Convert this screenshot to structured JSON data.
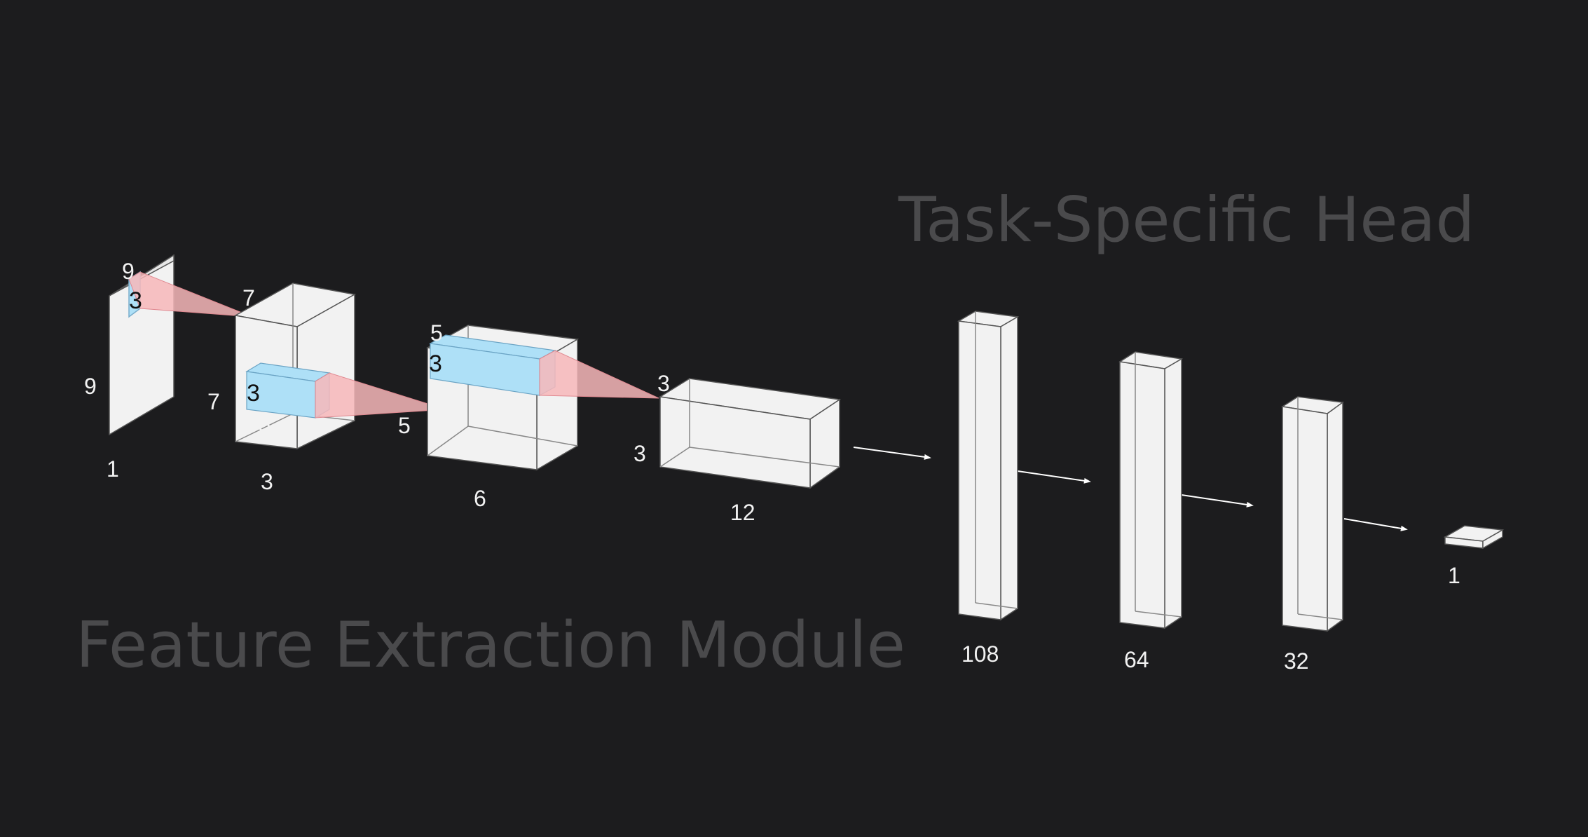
{
  "sections": {
    "feature_extraction": "Feature Extraction Module",
    "task_head": "Task-Specific Head"
  },
  "colors": {
    "background": "#1c1c1e",
    "block_fill": "#f2f2f2",
    "block_edge": "#555555",
    "kernel_fill": "#aee0f7",
    "receptive_fill": "#f7b7ba",
    "label_text": "#f2f2f2",
    "section_text": "#4a4a4c"
  },
  "conv_blocks": [
    {
      "height_label": "9",
      "width_label": "9",
      "depth_label": "1",
      "kernel_labels": [
        "3",
        "3"
      ]
    },
    {
      "height_label": "7",
      "width_label": "7",
      "depth_label": "3",
      "kernel_labels": [
        "3",
        "3"
      ]
    },
    {
      "height_label": "5",
      "width_label": "5",
      "depth_label": "6",
      "kernel_labels": [
        "3",
        "3"
      ]
    },
    {
      "height_label": "3",
      "width_label": "3",
      "depth_label": "12"
    }
  ],
  "dense_layers": [
    {
      "units_label": "108"
    },
    {
      "units_label": "64"
    },
    {
      "units_label": "32"
    },
    {
      "units_label": "1"
    }
  ]
}
